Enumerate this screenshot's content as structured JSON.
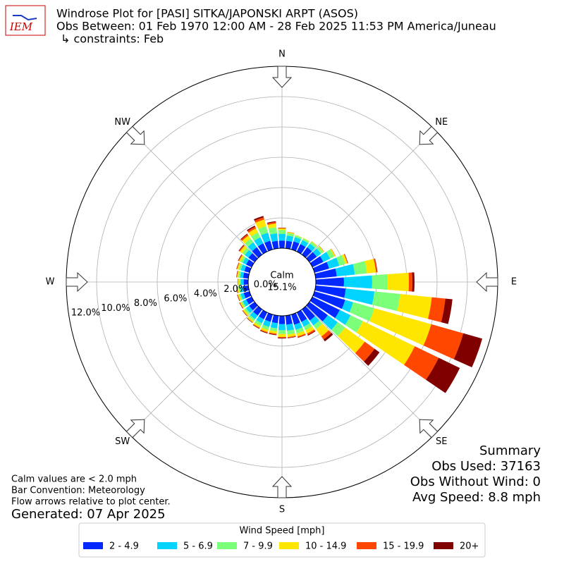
{
  "chart_data": {
    "type": "windrose",
    "logo_text": "IEM",
    "title": "Windrose Plot for [PASI] SITKA/JAPONSKI ARPT (ASOS)",
    "subtitle": "Obs Between: 01 Feb 1970 12:00 AM - 28 Feb 2025 11:53 PM America/Juneau",
    "constraints": "↳ constraints: Feb",
    "direction_labels": [
      "N",
      "NE",
      "E",
      "SE",
      "S",
      "SW",
      "W",
      "NW"
    ],
    "calm_label": "Calm",
    "calm_value": "15.1%",
    "rlim": [
      0,
      12
    ],
    "rticks": [
      {
        "value": 0,
        "label": "0.0%"
      },
      {
        "value": 2,
        "label": "2.0%"
      },
      {
        "value": 4,
        "label": "4.0%"
      },
      {
        "value": 6,
        "label": "6.0%"
      },
      {
        "value": 8,
        "label": "8.0%"
      },
      {
        "value": 10,
        "label": "10.0%"
      },
      {
        "value": 12,
        "label": "12.0%"
      }
    ],
    "grid": true,
    "x": [
      0,
      10,
      20,
      30,
      40,
      50,
      60,
      70,
      80,
      90,
      100,
      110,
      120,
      130,
      140,
      150,
      160,
      170,
      180,
      190,
      200,
      210,
      220,
      230,
      240,
      250,
      260,
      270,
      280,
      290,
      300,
      310,
      320,
      330,
      340,
      350
    ],
    "legend_title": "Wind Speed [mph]",
    "series": [
      {
        "name": "2 - 4.9",
        "color": "#0028ff",
        "values": [
          0.5,
          0.5,
          0.55,
          0.55,
          0.6,
          0.6,
          0.8,
          1.0,
          1.4,
          1.86,
          2.0,
          2.1,
          2.0,
          1.5,
          0.9,
          0.7,
          0.7,
          0.6,
          0.55,
          0.5,
          0.5,
          0.5,
          0.5,
          0.45,
          0.4,
          0.4,
          0.35,
          0.3,
          0.35,
          0.35,
          0.4,
          0.5,
          0.6,
          0.6,
          0.6,
          0.5
        ]
      },
      {
        "name": "5 - 6.9",
        "color": "#00d4ff",
        "values": [
          0.45,
          0.35,
          0.3,
          0.3,
          0.3,
          0.35,
          0.5,
          0.7,
          1.2,
          1.86,
          1.9,
          0.55,
          0.8,
          0.8,
          0.4,
          0.35,
          0.35,
          0.4,
          0.4,
          0.35,
          0.35,
          0.3,
          0.3,
          0.25,
          0.25,
          0.2,
          0.2,
          0.2,
          0.2,
          0.25,
          0.25,
          0.3,
          0.4,
          0.45,
          0.55,
          0.5
        ]
      },
      {
        "name": "7 - 9.9",
        "color": "#7cff79",
        "values": [
          0.25,
          0.18,
          0.12,
          0.12,
          0.15,
          0.18,
          0.3,
          0.4,
          0.8,
          1.02,
          1.7,
          1.45,
          0.9,
          0.6,
          0.3,
          0.25,
          0.25,
          0.25,
          0.25,
          0.2,
          0.2,
          0.2,
          0.15,
          0.15,
          0.12,
          0.12,
          0.12,
          0.1,
          0.12,
          0.15,
          0.15,
          0.2,
          0.3,
          0.35,
          0.45,
          0.4
        ]
      },
      {
        "name": "10 - 14.9",
        "color": "#ffe600",
        "values": [
          0.1,
          0.05,
          0.03,
          0.03,
          0.04,
          0.05,
          0.08,
          0.15,
          0.6,
          1.4,
          2.1,
          3.9,
          3.8,
          1.6,
          0.6,
          0.25,
          0.2,
          0.17,
          0.2,
          0.15,
          0.15,
          0.12,
          0.1,
          0.1,
          0.08,
          0.08,
          0.08,
          0.07,
          0.08,
          0.1,
          0.12,
          0.2,
          0.25,
          0.3,
          0.45,
          0.25
        ]
      },
      {
        "name": "15 - 19.9",
        "color": "#ff4700",
        "values": [
          0.03,
          0.02,
          0,
          0,
          0.01,
          0.02,
          0.02,
          0.03,
          0.08,
          0.23,
          0.9,
          2.2,
          1.75,
          0.8,
          0.25,
          0.1,
          0.07,
          0.05,
          0.06,
          0.06,
          0.06,
          0.05,
          0.03,
          0.03,
          0.03,
          0.03,
          0.03,
          0.02,
          0.03,
          0.03,
          0.05,
          0.06,
          0.1,
          0.12,
          0.15,
          0.1
        ]
      },
      {
        "name": "20+",
        "color": "#800000",
        "values": [
          0.02,
          0,
          0,
          0,
          0,
          0,
          0,
          0.02,
          0.02,
          0.14,
          0.47,
          1.3,
          1.55,
          0.4,
          0.15,
          0.05,
          0.03,
          0.03,
          0.04,
          0.04,
          0.04,
          0.03,
          0.02,
          0.02,
          0.02,
          0.02,
          0.02,
          0.01,
          0.02,
          0.02,
          0.03,
          0.04,
          0.05,
          0.08,
          0.1,
          0.05
        ]
      }
    ],
    "notes": [
      "Calm values are < 2.0 mph",
      "Bar Convention: Meteorology",
      "Flow arrows relative to plot center."
    ],
    "generated": "Generated: 07 Apr 2025",
    "summary": [
      "Summary",
      "Obs Used: 37163",
      "Obs Without Wind: 0",
      "Avg Speed: 8.8 mph"
    ]
  }
}
